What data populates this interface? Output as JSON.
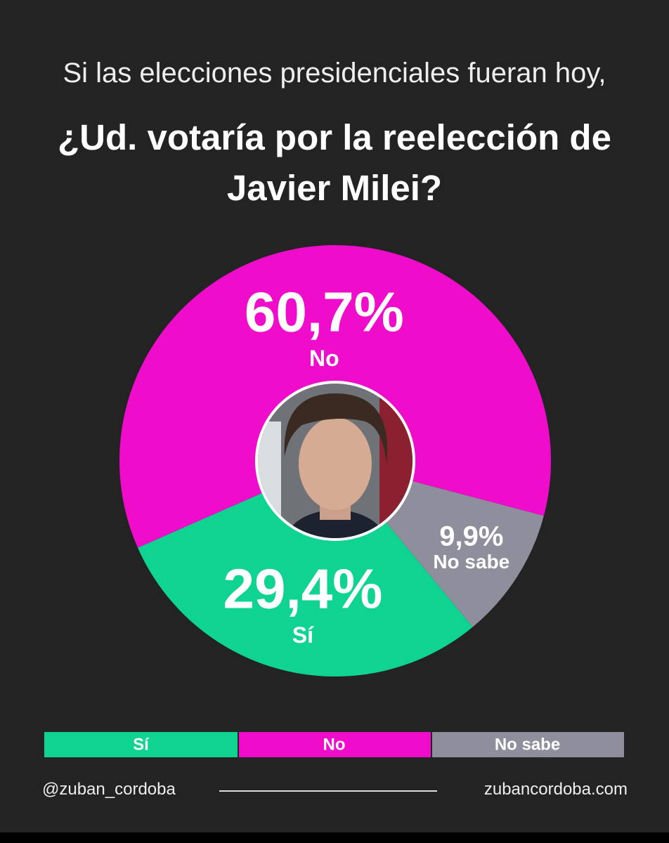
{
  "subtitle": "Si las elecciones presidenciales fueran hoy,",
  "title": "¿Ud. votaría por la reelección de Javier Milei?",
  "chart_data": {
    "type": "pie",
    "categories": [
      "Sí",
      "No",
      "No sabe"
    ],
    "values": [
      29.4,
      60.7,
      9.9
    ],
    "value_labels": [
      "29,4%",
      "60,7%",
      "9,9%"
    ],
    "colors": [
      "#0fd390",
      "#f00ccb",
      "#8e8e9c"
    ],
    "legend": true
  },
  "footer": {
    "handle": "@zuban_cordoba",
    "website": "zubancordoba.com"
  }
}
